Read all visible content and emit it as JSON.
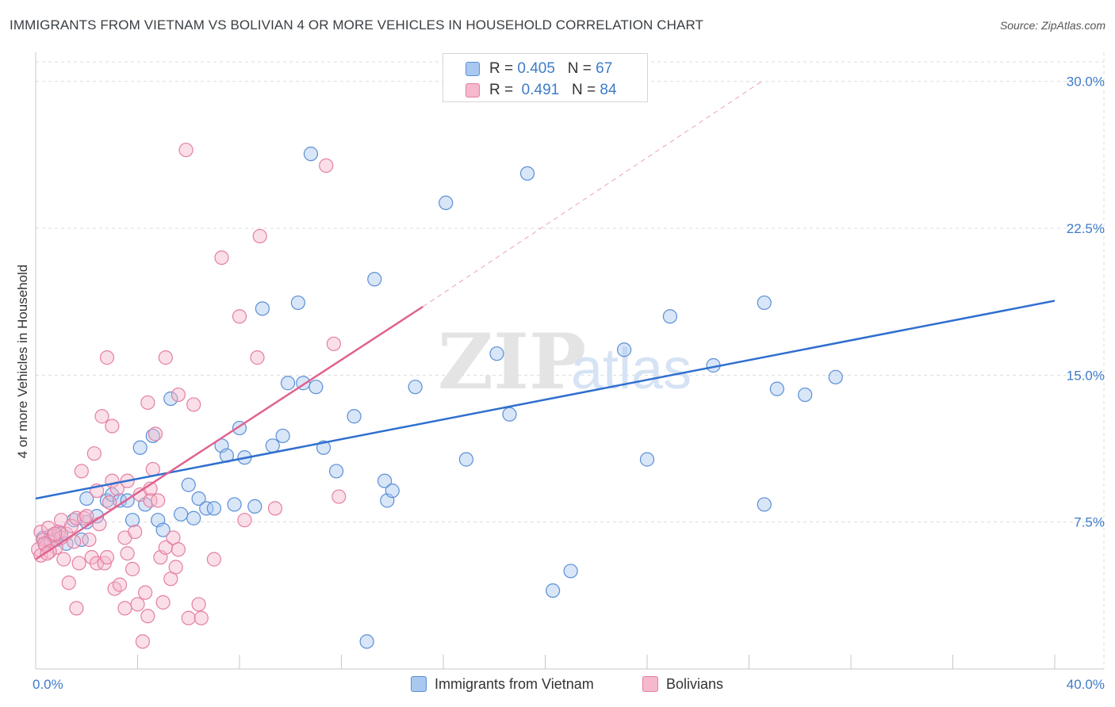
{
  "title": "IMMIGRANTS FROM VIETNAM VS BOLIVIAN 4 OR MORE VEHICLES IN HOUSEHOLD CORRELATION CHART",
  "source": "Source: ZipAtlas.com",
  "watermark": {
    "zip": "ZIP",
    "atlas": "atlas"
  },
  "colors": {
    "blue_fill": "#a9c8ef",
    "blue_stroke": "#5b8fd6",
    "blue_line": "#2f6fcf",
    "pink_fill": "#f5b8cd",
    "pink_stroke": "#e47fa3",
    "pink_line": "#e0628f",
    "tick_text": "#3d7cc9",
    "grid": "#dcdcdc"
  },
  "legend": {
    "series": [
      {
        "r_label": "R = ",
        "r_value": "0.405",
        "n_label": "N = ",
        "n_value": "67"
      },
      {
        "r_label": "R = ",
        "r_value": "0.491",
        "n_label": "N = ",
        "n_value": "84"
      }
    ]
  },
  "chart_data": {
    "type": "scatter",
    "title": "IMMIGRANTS FROM VIETNAM VS BOLIVIAN 4 OR MORE VEHICLES IN HOUSEHOLD CORRELATION CHART",
    "xlabel": "",
    "ylabel": "4 or more Vehicles in Household",
    "xlim": [
      0,
      40
    ],
    "ylim": [
      0,
      31
    ],
    "x_tick_labels": [
      "0.0%",
      "40.0%"
    ],
    "y_ticks": [
      7.5,
      15.0,
      22.5,
      30.0
    ],
    "y_tick_labels": [
      "7.5%",
      "15.0%",
      "22.5%",
      "30.0%"
    ],
    "series": [
      {
        "name": "Immigrants from Vietnam",
        "color": "blue",
        "trend": {
          "x0": 0,
          "y0": 8.7,
          "x1": 40,
          "y1": 18.8
        },
        "points": [
          [
            0.3,
            6.7
          ],
          [
            0.5,
            6.5
          ],
          [
            0.6,
            6.8
          ],
          [
            0.8,
            6.6
          ],
          [
            1.0,
            6.9
          ],
          [
            1.2,
            6.4
          ],
          [
            1.5,
            7.6
          ],
          [
            1.8,
            6.6
          ],
          [
            2.0,
            7.5
          ],
          [
            2.0,
            8.7
          ],
          [
            2.4,
            7.8
          ],
          [
            2.8,
            8.6
          ],
          [
            3.0,
            8.9
          ],
          [
            3.3,
            8.6
          ],
          [
            3.6,
            8.6
          ],
          [
            3.8,
            7.6
          ],
          [
            4.1,
            11.3
          ],
          [
            4.3,
            8.4
          ],
          [
            4.6,
            11.9
          ],
          [
            4.8,
            7.6
          ],
          [
            5.0,
            7.1
          ],
          [
            5.3,
            13.8
          ],
          [
            5.7,
            7.9
          ],
          [
            6.0,
            9.4
          ],
          [
            6.2,
            7.7
          ],
          [
            6.4,
            8.7
          ],
          [
            6.7,
            8.2
          ],
          [
            7.0,
            8.2
          ],
          [
            7.3,
            11.4
          ],
          [
            7.5,
            10.9
          ],
          [
            7.8,
            8.4
          ],
          [
            8.0,
            12.3
          ],
          [
            8.2,
            10.8
          ],
          [
            8.6,
            8.3
          ],
          [
            8.9,
            18.4
          ],
          [
            9.3,
            11.4
          ],
          [
            9.7,
            11.9
          ],
          [
            9.9,
            14.6
          ],
          [
            10.3,
            18.7
          ],
          [
            10.5,
            14.6
          ],
          [
            10.8,
            26.3
          ],
          [
            11.0,
            14.4
          ],
          [
            11.3,
            11.3
          ],
          [
            11.8,
            10.1
          ],
          [
            12.5,
            12.9
          ],
          [
            13.3,
            19.9
          ],
          [
            13.7,
            9.6
          ],
          [
            13.8,
            8.6
          ],
          [
            14.0,
            9.1
          ],
          [
            14.9,
            14.4
          ],
          [
            16.1,
            23.8
          ],
          [
            16.9,
            10.7
          ],
          [
            18.1,
            16.1
          ],
          [
            18.6,
            13.0
          ],
          [
            19.3,
            25.3
          ],
          [
            20.3,
            4.0
          ],
          [
            21.0,
            5.0
          ],
          [
            23.1,
            16.3
          ],
          [
            24.0,
            10.7
          ],
          [
            24.9,
            18.0
          ],
          [
            26.6,
            15.5
          ],
          [
            28.6,
            18.7
          ],
          [
            28.6,
            8.4
          ],
          [
            29.1,
            14.3
          ],
          [
            30.2,
            14.0
          ],
          [
            31.4,
            14.9
          ],
          [
            13.0,
            1.4
          ]
        ]
      },
      {
        "name": "Bolivians",
        "color": "pink",
        "trend": {
          "x0": 0,
          "y0": 5.6,
          "x1": 15.2,
          "y1": 18.5
        },
        "trend_dashed": {
          "x0": 15.2,
          "y0": 18.5,
          "x1": 28.5,
          "y1": 30.0
        },
        "points": [
          [
            0.1,
            6.1
          ],
          [
            0.2,
            7.0
          ],
          [
            0.2,
            5.8
          ],
          [
            0.3,
            6.6
          ],
          [
            0.4,
            6.3
          ],
          [
            0.5,
            7.2
          ],
          [
            0.6,
            6.5
          ],
          [
            0.7,
            6.8
          ],
          [
            0.8,
            6.2
          ],
          [
            0.9,
            7.0
          ],
          [
            1.0,
            6.7
          ],
          [
            1.1,
            5.6
          ],
          [
            1.2,
            6.9
          ],
          [
            1.0,
            7.6
          ],
          [
            1.3,
            4.4
          ],
          [
            1.4,
            7.3
          ],
          [
            1.5,
            6.5
          ],
          [
            1.6,
            7.7
          ],
          [
            1.6,
            3.1
          ],
          [
            1.7,
            5.4
          ],
          [
            1.8,
            10.1
          ],
          [
            1.9,
            7.7
          ],
          [
            2.0,
            7.8
          ],
          [
            2.1,
            6.6
          ],
          [
            2.2,
            5.7
          ],
          [
            2.3,
            11.0
          ],
          [
            2.4,
            5.4
          ],
          [
            2.4,
            9.1
          ],
          [
            2.5,
            7.4
          ],
          [
            2.6,
            12.9
          ],
          [
            2.7,
            5.4
          ],
          [
            2.8,
            15.9
          ],
          [
            2.9,
            8.5
          ],
          [
            2.8,
            5.7
          ],
          [
            3.0,
            12.4
          ],
          [
            3.0,
            9.6
          ],
          [
            3.1,
            4.1
          ],
          [
            3.2,
            9.2
          ],
          [
            3.3,
            4.3
          ],
          [
            3.5,
            6.7
          ],
          [
            3.5,
            3.1
          ],
          [
            3.6,
            9.6
          ],
          [
            3.6,
            5.9
          ],
          [
            3.8,
            5.1
          ],
          [
            3.9,
            7.0
          ],
          [
            4.0,
            3.3
          ],
          [
            4.1,
            8.9
          ],
          [
            4.2,
            1.4
          ],
          [
            4.3,
            3.9
          ],
          [
            4.4,
            2.7
          ],
          [
            4.4,
            13.6
          ],
          [
            4.5,
            9.2
          ],
          [
            4.5,
            8.6
          ],
          [
            4.6,
            10.2
          ],
          [
            4.7,
            12.0
          ],
          [
            4.8,
            8.6
          ],
          [
            4.9,
            5.7
          ],
          [
            5.0,
            3.4
          ],
          [
            5.1,
            15.9
          ],
          [
            5.1,
            6.2
          ],
          [
            5.3,
            4.6
          ],
          [
            5.4,
            6.7
          ],
          [
            5.5,
            5.2
          ],
          [
            5.6,
            14.0
          ],
          [
            5.6,
            6.1
          ],
          [
            5.9,
            26.5
          ],
          [
            6.0,
            2.6
          ],
          [
            6.2,
            13.5
          ],
          [
            6.4,
            3.3
          ],
          [
            6.5,
            2.6
          ],
          [
            7.0,
            5.6
          ],
          [
            7.3,
            21.0
          ],
          [
            8.0,
            18.0
          ],
          [
            8.2,
            7.6
          ],
          [
            8.7,
            15.9
          ],
          [
            8.8,
            22.1
          ],
          [
            9.4,
            8.2
          ],
          [
            11.4,
            25.7
          ],
          [
            11.7,
            16.6
          ],
          [
            11.9,
            8.8
          ],
          [
            0.35,
            6.4
          ],
          [
            0.55,
            6.0
          ],
          [
            0.75,
            6.9
          ],
          [
            0.45,
            5.9
          ]
        ]
      }
    ]
  },
  "bottom_legend": [
    {
      "label": "Immigrants from Vietnam"
    },
    {
      "label": "Bolivians"
    }
  ]
}
